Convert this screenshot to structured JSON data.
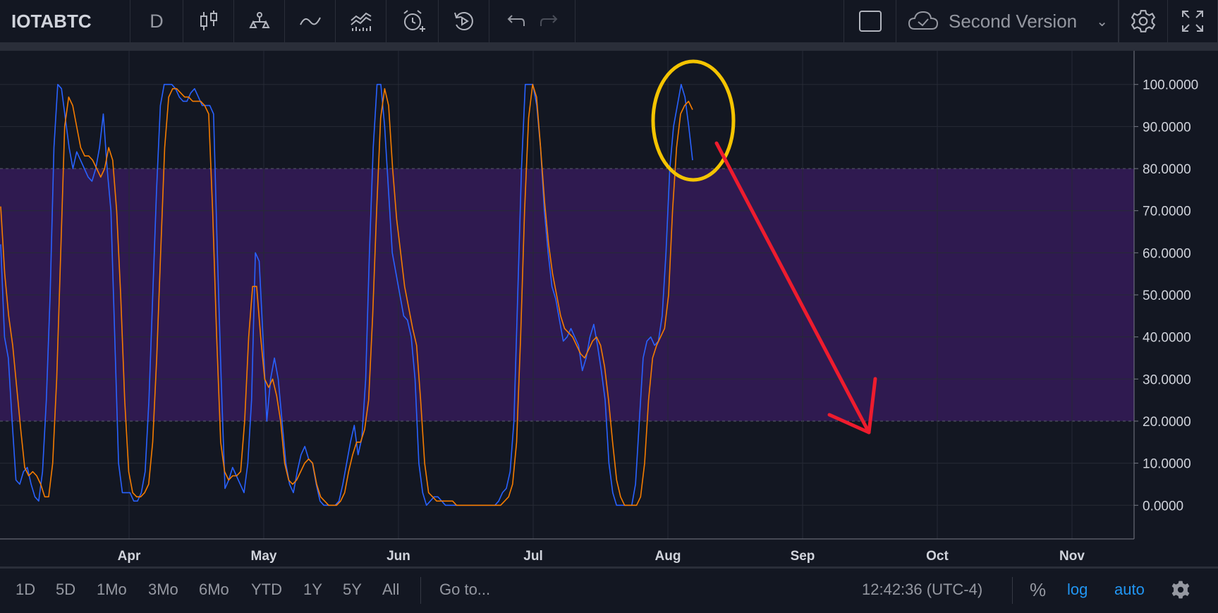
{
  "toolbar": {
    "symbol": "IOTABTC",
    "interval": "D",
    "layout_name": "Second Version",
    "icons": [
      "candles-icon",
      "compare-icon",
      "indicators-icon",
      "financials-icon",
      "alert-icon",
      "replay-icon",
      "undo-icon",
      "redo-icon",
      "save-square-icon",
      "cloud-save-icon",
      "gear-icon",
      "fullscreen-icon"
    ]
  },
  "chart_data": {
    "type": "line",
    "x_labels": [
      "Apr",
      "May",
      "Jun",
      "Jul",
      "Aug",
      "Sep",
      "Oct",
      "Nov"
    ],
    "y_ticks": [
      "100.0000",
      "90.0000",
      "80.0000",
      "70.0000",
      "60.0000",
      "50.0000",
      "40.0000",
      "30.0000",
      "20.0000",
      "10.0000",
      "0.0000"
    ],
    "ylim": [
      -8,
      108
    ],
    "band": [
      20,
      80
    ],
    "series": [
      {
        "color": "#2962ff",
        "values": [
          62,
          40,
          35,
          20,
          6,
          5,
          8,
          9,
          5,
          2,
          1,
          8,
          25,
          50,
          85,
          100,
          99,
          92,
          85,
          80,
          84,
          82,
          80,
          78,
          77,
          80,
          85,
          93,
          80,
          70,
          40,
          10,
          3,
          3,
          3,
          1,
          1,
          3,
          8,
          25,
          50,
          75,
          95,
          100,
          100,
          100,
          99,
          97,
          96,
          96,
          98,
          99,
          97,
          95,
          95,
          95,
          93,
          60,
          30,
          4,
          6,
          9,
          7,
          5,
          3,
          10,
          25,
          60,
          58,
          40,
          20,
          30,
          35,
          30,
          20,
          10,
          5,
          3,
          8,
          12,
          14,
          11,
          10,
          5,
          1,
          0,
          0,
          0,
          0,
          1,
          5,
          10,
          15,
          19,
          12,
          16,
          30,
          60,
          85,
          100,
          100,
          90,
          75,
          60,
          55,
          50,
          45,
          44,
          40,
          30,
          10,
          3,
          0,
          1,
          2,
          2,
          1,
          0,
          0,
          0,
          0,
          0,
          0,
          0,
          0,
          0,
          0,
          0,
          0,
          0,
          0,
          1,
          3,
          4,
          8,
          20,
          50,
          80,
          100,
          100,
          100,
          95,
          85,
          70,
          60,
          52,
          49,
          44,
          39,
          40,
          42,
          40,
          38,
          32,
          35,
          40,
          43,
          38,
          32,
          25,
          10,
          3,
          0,
          0,
          0,
          0,
          0,
          5,
          20,
          35,
          39,
          40,
          38,
          39,
          45,
          60,
          80,
          90,
          95,
          100,
          97,
          90,
          82
        ]
      },
      {
        "color": "#f57c00",
        "values": [
          71,
          55,
          45,
          38,
          28,
          18,
          9,
          7,
          8,
          7,
          5,
          2,
          2,
          10,
          30,
          60,
          90,
          97,
          95,
          90,
          85,
          83,
          83,
          82,
          80,
          78,
          80,
          85,
          82,
          70,
          50,
          25,
          8,
          3,
          2,
          2,
          3,
          5,
          15,
          35,
          60,
          85,
          97,
          99,
          99,
          98,
          97,
          97,
          96,
          96,
          96,
          95,
          93,
          70,
          40,
          15,
          8,
          6,
          7,
          7,
          8,
          20,
          40,
          52,
          52,
          40,
          30,
          28,
          30,
          26,
          20,
          10,
          6,
          5,
          6,
          8,
          10,
          11,
          10,
          5,
          2,
          1,
          0,
          0,
          0,
          1,
          3,
          8,
          12,
          15,
          15,
          18,
          25,
          45,
          70,
          92,
          99,
          95,
          80,
          68,
          60,
          52,
          47,
          42,
          38,
          25,
          10,
          3,
          2,
          1,
          1,
          1,
          1,
          1,
          0,
          0,
          0,
          0,
          0,
          0,
          0,
          0,
          0,
          0,
          0,
          0,
          1,
          2,
          5,
          15,
          40,
          70,
          92,
          100,
          97,
          85,
          72,
          62,
          55,
          50,
          45,
          42,
          41,
          40,
          38,
          36,
          35,
          37,
          39,
          40,
          38,
          33,
          25,
          15,
          6,
          2,
          0,
          0,
          0,
          0,
          2,
          10,
          25,
          35,
          38,
          40,
          42,
          50,
          70,
          85,
          93,
          95,
          96,
          94
        ]
      }
    ]
  },
  "bottombar": {
    "ranges": [
      "1D",
      "5D",
      "1Mo",
      "3Mo",
      "6Mo",
      "YTD",
      "1Y",
      "5Y",
      "All"
    ],
    "goto": "Go to...",
    "clock": "12:42:36 (UTC-4)",
    "percent": "%",
    "log": "log",
    "auto": "auto"
  }
}
